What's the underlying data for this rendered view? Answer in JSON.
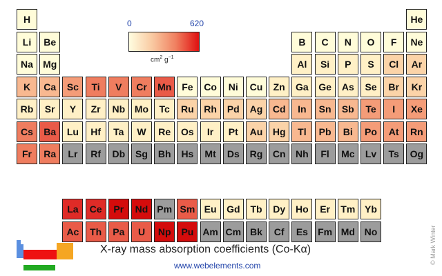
{
  "legend": {
    "min_label": "0",
    "max_label": "620",
    "unit_base": "cm",
    "unit_sup1": "2",
    "unit_mid": " g",
    "unit_sup2": "−1",
    "gradient_colors": [
      "#fffde0",
      "#f9c9a1",
      "#f08060",
      "#e01010"
    ]
  },
  "title": "X-ray mass absorption coefficients (Co-Kα)",
  "url": "www.webelements.com",
  "credit": "© Mark Winter",
  "colors": {
    "c0": "#fffcd9",
    "c1": "#fff0c6",
    "c2": "#fbd3a8",
    "c3": "#f8b890",
    "c4": "#f49c78",
    "c5": "#ef7d5f",
    "c6": "#e95b48",
    "c7": "#df2b27",
    "c8": "#d40c0c",
    "na": "#9c9c9c"
  },
  "elements": [
    {
      "s": "H",
      "r": 1,
      "c": 1,
      "v": "c0"
    },
    {
      "s": "He",
      "r": 1,
      "c": 18,
      "v": "c0"
    },
    {
      "s": "Li",
      "r": 2,
      "c": 1,
      "v": "c0"
    },
    {
      "s": "Be",
      "r": 2,
      "c": 2,
      "v": "c0"
    },
    {
      "s": "B",
      "r": 2,
      "c": 13,
      "v": "c0"
    },
    {
      "s": "C",
      "r": 2,
      "c": 14,
      "v": "c0"
    },
    {
      "s": "N",
      "r": 2,
      "c": 15,
      "v": "c0"
    },
    {
      "s": "O",
      "r": 2,
      "c": 16,
      "v": "c0"
    },
    {
      "s": "F",
      "r": 2,
      "c": 17,
      "v": "c0"
    },
    {
      "s": "Ne",
      "r": 2,
      "c": 18,
      "v": "c0"
    },
    {
      "s": "Na",
      "r": 3,
      "c": 1,
      "v": "c0"
    },
    {
      "s": "Mg",
      "r": 3,
      "c": 2,
      "v": "c0"
    },
    {
      "s": "Al",
      "r": 3,
      "c": 13,
      "v": "c1"
    },
    {
      "s": "Si",
      "r": 3,
      "c": 14,
      "v": "c1"
    },
    {
      "s": "P",
      "r": 3,
      "c": 15,
      "v": "c1"
    },
    {
      "s": "S",
      "r": 3,
      "c": 16,
      "v": "c1"
    },
    {
      "s": "Cl",
      "r": 3,
      "c": 17,
      "v": "c2"
    },
    {
      "s": "Ar",
      "r": 3,
      "c": 18,
      "v": "c2"
    },
    {
      "s": "K",
      "r": 4,
      "c": 1,
      "v": "c3"
    },
    {
      "s": "Ca",
      "r": 4,
      "c": 2,
      "v": "c3"
    },
    {
      "s": "Sc",
      "r": 4,
      "c": 3,
      "v": "c4"
    },
    {
      "s": "Ti",
      "r": 4,
      "c": 4,
      "v": "c5"
    },
    {
      "s": "V",
      "r": 4,
      "c": 5,
      "v": "c5"
    },
    {
      "s": "Cr",
      "r": 4,
      "c": 6,
      "v": "c5"
    },
    {
      "s": "Mn",
      "r": 4,
      "c": 7,
      "v": "c6"
    },
    {
      "s": "Fe",
      "r": 4,
      "c": 8,
      "v": "c0"
    },
    {
      "s": "Co",
      "r": 4,
      "c": 9,
      "v": "c0"
    },
    {
      "s": "Ni",
      "r": 4,
      "c": 10,
      "v": "c0"
    },
    {
      "s": "Cu",
      "r": 4,
      "c": 11,
      "v": "c0"
    },
    {
      "s": "Zn",
      "r": 4,
      "c": 12,
      "v": "c1"
    },
    {
      "s": "Ga",
      "r": 4,
      "c": 13,
      "v": "c1"
    },
    {
      "s": "Ge",
      "r": 4,
      "c": 14,
      "v": "c1"
    },
    {
      "s": "As",
      "r": 4,
      "c": 15,
      "v": "c1"
    },
    {
      "s": "Se",
      "r": 4,
      "c": 16,
      "v": "c1"
    },
    {
      "s": "Br",
      "r": 4,
      "c": 17,
      "v": "c2"
    },
    {
      "s": "Kr",
      "r": 4,
      "c": 18,
      "v": "c2"
    },
    {
      "s": "Rb",
      "r": 5,
      "c": 1,
      "v": "c1"
    },
    {
      "s": "Sr",
      "r": 5,
      "c": 2,
      "v": "c1"
    },
    {
      "s": "Y",
      "r": 5,
      "c": 3,
      "v": "c1"
    },
    {
      "s": "Zr",
      "r": 5,
      "c": 4,
      "v": "c1"
    },
    {
      "s": "Nb",
      "r": 5,
      "c": 5,
      "v": "c1"
    },
    {
      "s": "Mo",
      "r": 5,
      "c": 6,
      "v": "c1"
    },
    {
      "s": "Tc",
      "r": 5,
      "c": 7,
      "v": "c1"
    },
    {
      "s": "Ru",
      "r": 5,
      "c": 8,
      "v": "c2"
    },
    {
      "s": "Rh",
      "r": 5,
      "c": 9,
      "v": "c2"
    },
    {
      "s": "Pd",
      "r": 5,
      "c": 10,
      "v": "c2"
    },
    {
      "s": "Ag",
      "r": 5,
      "c": 11,
      "v": "c2"
    },
    {
      "s": "Cd",
      "r": 5,
      "c": 12,
      "v": "c3"
    },
    {
      "s": "In",
      "r": 5,
      "c": 13,
      "v": "c3"
    },
    {
      "s": "Sn",
      "r": 5,
      "c": 14,
      "v": "c3"
    },
    {
      "s": "Sb",
      "r": 5,
      "c": 15,
      "v": "c3"
    },
    {
      "s": "Te",
      "r": 5,
      "c": 16,
      "v": "c4"
    },
    {
      "s": "I",
      "r": 5,
      "c": 17,
      "v": "c4"
    },
    {
      "s": "Xe",
      "r": 5,
      "c": 18,
      "v": "c4"
    },
    {
      "s": "Cs",
      "r": 6,
      "c": 1,
      "v": "c5"
    },
    {
      "s": "Ba",
      "r": 6,
      "c": 2,
      "v": "c6"
    },
    {
      "s": "Lu",
      "r": 6,
      "c": 3,
      "v": "c1"
    },
    {
      "s": "Hf",
      "r": 6,
      "c": 4,
      "v": "c1"
    },
    {
      "s": "Ta",
      "r": 6,
      "c": 5,
      "v": "c1"
    },
    {
      "s": "W",
      "r": 6,
      "c": 6,
      "v": "c1"
    },
    {
      "s": "Re",
      "r": 6,
      "c": 7,
      "v": "c1"
    },
    {
      "s": "Os",
      "r": 6,
      "c": 8,
      "v": "c1"
    },
    {
      "s": "Ir",
      "r": 6,
      "c": 9,
      "v": "c1"
    },
    {
      "s": "Pt",
      "r": 6,
      "c": 10,
      "v": "c1"
    },
    {
      "s": "Au",
      "r": 6,
      "c": 11,
      "v": "c2"
    },
    {
      "s": "Hg",
      "r": 6,
      "c": 12,
      "v": "c2"
    },
    {
      "s": "Tl",
      "r": 6,
      "c": 13,
      "v": "c3"
    },
    {
      "s": "Pb",
      "r": 6,
      "c": 14,
      "v": "c3"
    },
    {
      "s": "Bi",
      "r": 6,
      "c": 15,
      "v": "c3"
    },
    {
      "s": "Po",
      "r": 6,
      "c": 16,
      "v": "c4"
    },
    {
      "s": "At",
      "r": 6,
      "c": 17,
      "v": "c4"
    },
    {
      "s": "Rn",
      "r": 6,
      "c": 18,
      "v": "c4"
    },
    {
      "s": "Fr",
      "r": 7,
      "c": 1,
      "v": "c5"
    },
    {
      "s": "Ra",
      "r": 7,
      "c": 2,
      "v": "c5"
    },
    {
      "s": "Lr",
      "r": 7,
      "c": 3,
      "v": "na"
    },
    {
      "s": "Rf",
      "r": 7,
      "c": 4,
      "v": "na"
    },
    {
      "s": "Db",
      "r": 7,
      "c": 5,
      "v": "na"
    },
    {
      "s": "Sg",
      "r": 7,
      "c": 6,
      "v": "na"
    },
    {
      "s": "Bh",
      "r": 7,
      "c": 7,
      "v": "na"
    },
    {
      "s": "Hs",
      "r": 7,
      "c": 8,
      "v": "na"
    },
    {
      "s": "Mt",
      "r": 7,
      "c": 9,
      "v": "na"
    },
    {
      "s": "Ds",
      "r": 7,
      "c": 10,
      "v": "na"
    },
    {
      "s": "Rg",
      "r": 7,
      "c": 11,
      "v": "na"
    },
    {
      "s": "Cn",
      "r": 7,
      "c": 12,
      "v": "na"
    },
    {
      "s": "Nh",
      "r": 7,
      "c": 13,
      "v": "na"
    },
    {
      "s": "Fl",
      "r": 7,
      "c": 14,
      "v": "na"
    },
    {
      "s": "Mc",
      "r": 7,
      "c": 15,
      "v": "na"
    },
    {
      "s": "Lv",
      "r": 7,
      "c": 16,
      "v": "na"
    },
    {
      "s": "Ts",
      "r": 7,
      "c": 17,
      "v": "na"
    },
    {
      "s": "Og",
      "r": 7,
      "c": 18,
      "v": "na"
    },
    {
      "s": "La",
      "r": 9,
      "c": 3,
      "v": "c7"
    },
    {
      "s": "Ce",
      "r": 9,
      "c": 4,
      "v": "c7"
    },
    {
      "s": "Pr",
      "r": 9,
      "c": 5,
      "v": "c8"
    },
    {
      "s": "Nd",
      "r": 9,
      "c": 6,
      "v": "c8"
    },
    {
      "s": "Pm",
      "r": 9,
      "c": 7,
      "v": "na"
    },
    {
      "s": "Sm",
      "r": 9,
      "c": 8,
      "v": "c6"
    },
    {
      "s": "Eu",
      "r": 9,
      "c": 9,
      "v": "c1"
    },
    {
      "s": "Gd",
      "r": 9,
      "c": 10,
      "v": "c1"
    },
    {
      "s": "Tb",
      "r": 9,
      "c": 11,
      "v": "c1"
    },
    {
      "s": "Dy",
      "r": 9,
      "c": 12,
      "v": "c1"
    },
    {
      "s": "Ho",
      "r": 9,
      "c": 13,
      "v": "c1"
    },
    {
      "s": "Er",
      "r": 9,
      "c": 14,
      "v": "c1"
    },
    {
      "s": "Tm",
      "r": 9,
      "c": 15,
      "v": "c1"
    },
    {
      "s": "Yb",
      "r": 9,
      "c": 16,
      "v": "c1"
    },
    {
      "s": "Ac",
      "r": 10,
      "c": 3,
      "v": "c6"
    },
    {
      "s": "Th",
      "r": 10,
      "c": 4,
      "v": "c6"
    },
    {
      "s": "Pa",
      "r": 10,
      "c": 5,
      "v": "c6"
    },
    {
      "s": "U",
      "r": 10,
      "c": 6,
      "v": "c6"
    },
    {
      "s": "Np",
      "r": 10,
      "c": 7,
      "v": "c8"
    },
    {
      "s": "Pu",
      "r": 10,
      "c": 8,
      "v": "c8"
    },
    {
      "s": "Am",
      "r": 10,
      "c": 9,
      "v": "na"
    },
    {
      "s": "Cm",
      "r": 10,
      "c": 10,
      "v": "na"
    },
    {
      "s": "Bk",
      "r": 10,
      "c": 11,
      "v": "na"
    },
    {
      "s": "Cf",
      "r": 10,
      "c": 12,
      "v": "na"
    },
    {
      "s": "Es",
      "r": 10,
      "c": 13,
      "v": "na"
    },
    {
      "s": "Fm",
      "r": 10,
      "c": 14,
      "v": "na"
    },
    {
      "s": "Md",
      "r": 10,
      "c": 15,
      "v": "na"
    },
    {
      "s": "No",
      "r": 10,
      "c": 16,
      "v": "na"
    }
  ]
}
